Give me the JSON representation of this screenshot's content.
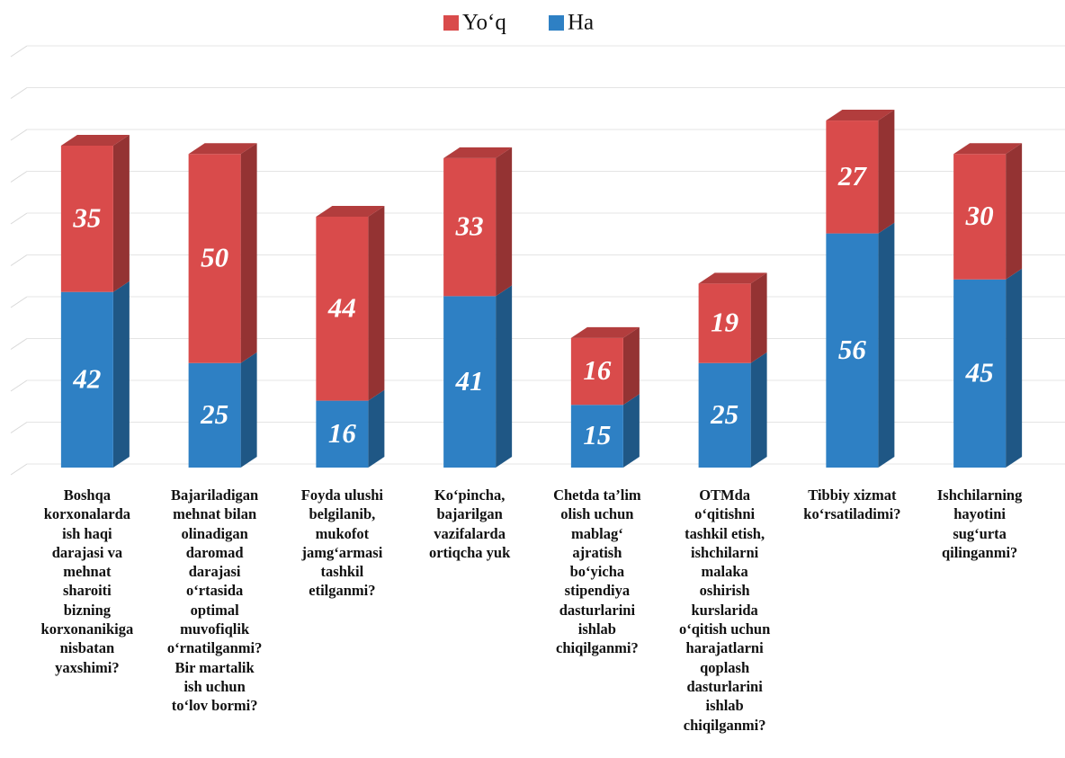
{
  "chart_data": {
    "type": "stacked_bar_3d",
    "categories": [
      "Boshqa\nkorxonalarda\nish haqi\ndarajasi va\nmehnat\nsharoiti\nbizning\nkorxonanikiga\nnisbatan\nyaxshimi?",
      "Bajariladigan\nmehnat bilan\nolinadigan\ndaromad\ndarajasi\no‘rtasida\noptimal\nmuvofiqlik\no‘rnatilganmi?\nBir martalik\nish uchun\nto‘lov bormi?",
      "Foyda ulushi\nbelgilanib,\nmukofot\njamg‘armasi\ntashkil\netilganmi?",
      "Ko‘pincha,\nbajarilgan\nvazifalarda\nortiqcha yuk",
      "Chetda ta’lim\nolish uchun\nmablag‘\najratish\nbo‘yicha\nstipendiya\ndasturlarini\nishlab\nchiqilganmi?",
      "OTMda\no‘qitishni\ntashkil etish,\nishchilarni\nmalaka\noshirish\nkurslarida\no‘qitish uchun\nharajatlarni\nqoplash\ndasturlarini\nishlab\nchiqilganmi?",
      "Tibbiy xizmat\nko‘rsatiladimi?",
      "Ishchilarning\nhayotini\nsug‘urta\nqilinganmi?"
    ],
    "series": [
      {
        "name": "Yo‘q",
        "color": "#d94b4b",
        "values": [
          35,
          50,
          44,
          33,
          16,
          19,
          27,
          30
        ]
      },
      {
        "name": "Ha",
        "color": "#2e80c4",
        "values": [
          42,
          25,
          16,
          41,
          15,
          25,
          56,
          45
        ]
      }
    ],
    "ylim": [
      0,
      100
    ],
    "yticks": [
      0,
      10,
      20,
      30,
      40,
      50,
      60,
      70,
      80,
      90,
      100
    ],
    "grid": true,
    "legend": "top"
  }
}
